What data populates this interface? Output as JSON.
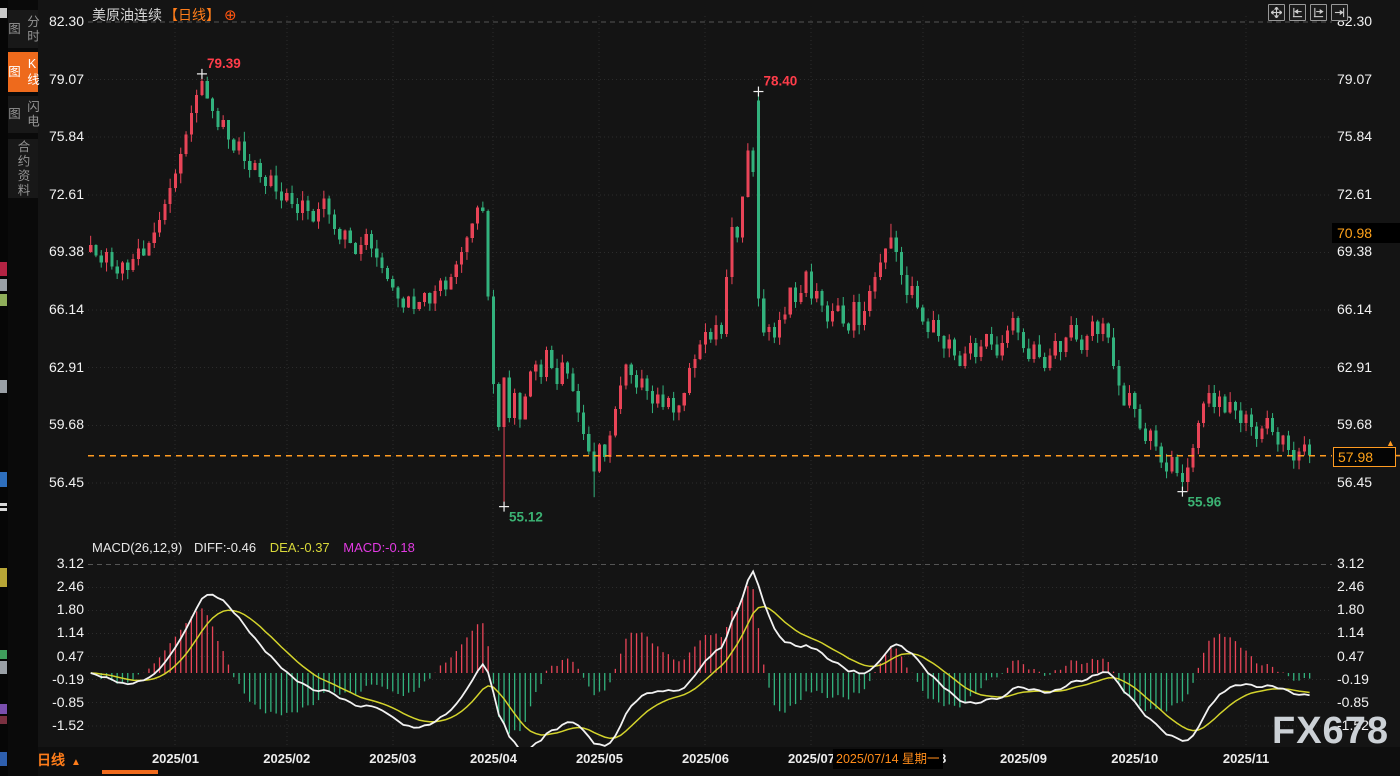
{
  "header": {
    "title": "美原油连续",
    "period_tag": "【日线】",
    "expand_glyph": "⊕"
  },
  "sidebar": {
    "tabs": [
      {
        "label": "分时图",
        "active": false
      },
      {
        "label": "K线图",
        "active": true
      },
      {
        "label": "闪电图",
        "active": false
      },
      {
        "label": "合约资料",
        "active": false
      }
    ]
  },
  "toolbar": {
    "buttons": [
      "pan-tool",
      "compress-horizontal",
      "expand-horizontal",
      "go-to-latest"
    ]
  },
  "price_axis": {
    "ticks": [
      "82.30",
      "79.07",
      "75.84",
      "72.61",
      "69.38",
      "66.14",
      "62.91",
      "59.68",
      "56.45"
    ],
    "high_badge": "70.98",
    "current_badge": "57.98",
    "current_value": 57.98,
    "current_marker": "▲"
  },
  "macd": {
    "title": "MACD(26,12,9)",
    "diff_label": "DIFF:-0.46",
    "dea_label": "DEA:-0.37",
    "macd_label": "MACD:-0.18",
    "axis_ticks": [
      "3.12",
      "2.46",
      "1.80",
      "1.14",
      "0.47",
      "-0.19",
      "-0.85",
      "-1.52"
    ]
  },
  "footer": {
    "period_label": "日线",
    "period_arrow": "▲",
    "tooltip_date": "2025/07/14 星期一"
  },
  "watermark": "FX678",
  "colors": {
    "up": "#e84457",
    "down": "#32b27d",
    "high_label": "#ff3d4a",
    "low_label": "#3bb273",
    "diff_line": "#f2f2f2",
    "dea_line": "#d3d32c",
    "current_line": "#ff9b21",
    "accent_orange": "#ee6a1c",
    "grid": "#2c2c2c",
    "grid_bright": "#555555",
    "background": "#141414"
  },
  "chart_data": {
    "type": "candlestick",
    "symbol": "美原油连续",
    "period": "日线",
    "price_range": {
      "top": 82.3,
      "bottom_label": 56.45
    },
    "macd_range": {
      "top": 3.12,
      "bottom": -1.52
    },
    "closes": [
      69.8,
      69.2,
      68.8,
      69.4,
      68.6,
      68.2,
      68.8,
      68.4,
      69.0,
      69.6,
      69.2,
      69.9,
      70.5,
      71.2,
      72.1,
      73.0,
      73.8,
      74.9,
      76.0,
      77.2,
      78.2,
      79.0,
      78.0,
      77.3,
      76.4,
      76.8,
      75.7,
      75.1,
      75.6,
      74.5,
      74.0,
      74.4,
      73.6,
      73.1,
      73.7,
      72.8,
      72.3,
      72.7,
      72.1,
      71.6,
      72.3,
      71.7,
      71.1,
      71.8,
      72.4,
      71.5,
      70.7,
      70.1,
      70.6,
      69.9,
      69.3,
      69.8,
      70.4,
      69.6,
      69.1,
      68.5,
      67.9,
      67.4,
      66.8,
      66.3,
      66.9,
      66.2,
      66.6,
      67.1,
      66.5,
      67.2,
      67.8,
      67.3,
      68.0,
      68.7,
      69.4,
      70.2,
      71.0,
      71.9,
      71.7,
      66.9,
      61.99,
      59.58,
      62.35,
      60.1,
      61.5,
      60.0,
      61.3,
      62.7,
      63.1,
      62.4,
      63.9,
      62.9,
      62.0,
      63.2,
      62.6,
      61.6,
      60.4,
      59.2,
      58.2,
      57.1,
      58.6,
      57.9,
      59.1,
      60.6,
      61.9,
      63.1,
      62.5,
      61.8,
      62.3,
      61.6,
      60.9,
      61.4,
      60.7,
      61.2,
      60.4,
      60.8,
      61.5,
      62.9,
      63.4,
      64.2,
      64.9,
      64.5,
      65.3,
      64.8,
      68.0,
      70.8,
      70.2,
      72.5,
      75.1,
      73.9,
      66.8,
      64.9,
      65.2,
      64.6,
      65.6,
      65.9,
      67.4,
      66.6,
      67.1,
      68.3,
      66.8,
      67.2,
      66.4,
      65.5,
      66.1,
      66.4,
      65.4,
      65.0,
      66.6,
      65.3,
      66.1,
      67.2,
      68.0,
      68.8,
      69.6,
      70.2,
      69.4,
      68.1,
      67.0,
      67.5,
      66.3,
      65.5,
      64.9,
      65.6,
      64.7,
      64.0,
      64.5,
      63.6,
      63.0,
      63.7,
      64.3,
      63.5,
      64.1,
      64.8,
      64.2,
      63.6,
      64.3,
      65.0,
      65.7,
      64.9,
      64.0,
      63.4,
      64.2,
      63.5,
      62.9,
      63.6,
      64.4,
      63.8,
      64.6,
      65.3,
      64.5,
      63.9,
      64.7,
      65.5,
      64.8,
      65.4,
      64.6,
      63.0,
      61.9,
      60.8,
      61.5,
      60.6,
      59.5,
      58.8,
      59.4,
      58.5,
      57.6,
      57.1,
      57.9,
      57.0,
      56.5,
      57.3,
      58.4,
      59.8,
      60.9,
      61.5,
      60.7,
      61.3,
      60.4,
      61.0,
      60.5,
      59.8,
      60.3,
      59.6,
      58.9,
      59.5,
      60.1,
      59.3,
      58.6,
      59.1,
      58.3,
      57.7,
      58.2,
      58.6,
      57.98
    ],
    "extremes": [
      {
        "index": 21,
        "high": 79.39,
        "label": "79.39",
        "type": "high"
      },
      {
        "index": 78,
        "low": 55.12,
        "label": "55.12",
        "type": "low"
      },
      {
        "index": 95,
        "low": 55.65,
        "type": "low"
      },
      {
        "index": 126,
        "open": 77.9,
        "high": 78.4,
        "label": "78.40",
        "type": "high"
      },
      {
        "index": 151,
        "high": 70.98,
        "type": "high"
      },
      {
        "index": 206,
        "low": 55.96,
        "label": "55.96",
        "type": "low"
      }
    ],
    "months": [
      {
        "label": "2025/01",
        "index": 16
      },
      {
        "label": "2025/02",
        "index": 37
      },
      {
        "label": "2025/03",
        "index": 57
      },
      {
        "label": "2025/04",
        "index": 76
      },
      {
        "label": "2025/05",
        "index": 96
      },
      {
        "label": "2025/06",
        "index": 116
      },
      {
        "label": "2025/07",
        "index": 136
      },
      {
        "label": "2025/08",
        "index": 157
      },
      {
        "label": "2025/09",
        "index": 176
      },
      {
        "label": "2025/10",
        "index": 197
      },
      {
        "label": "2025/11",
        "index": 218
      }
    ],
    "macd_settings": {
      "slow": 26,
      "fast": 12,
      "signal": 9,
      "diff": -0.46,
      "dea": -0.37,
      "macd": -0.18
    }
  }
}
